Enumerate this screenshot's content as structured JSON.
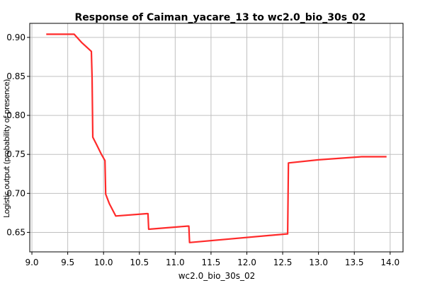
{
  "chart_data": {
    "type": "line",
    "title": "Response of Caiman_yacare_13 to wc2.0_bio_30s_02",
    "xlabel": "wc2.0_bio_30s_02",
    "ylabel": "Logistic output (probability of presence)",
    "xlim": [
      8.97,
      14.18
    ],
    "ylim": [
      0.625,
      0.918
    ],
    "xticks": [
      9.0,
      9.5,
      10.0,
      10.5,
      11.0,
      11.5,
      12.0,
      12.5,
      13.0,
      13.5,
      14.0
    ],
    "xtick_labels": [
      "9.0",
      "9.5",
      "10.0",
      "10.5",
      "11.0",
      "11.5",
      "12.0",
      "12.5",
      "13.0",
      "13.5",
      "14.0"
    ],
    "yticks": [
      0.65,
      0.7,
      0.75,
      0.8,
      0.85,
      0.9
    ],
    "ytick_labels": [
      "0.65",
      "0.70",
      "0.75",
      "0.80",
      "0.85",
      "0.90"
    ],
    "grid": true,
    "color": "#ff2a2a",
    "series": [
      {
        "x": [
          9.2,
          9.59,
          9.61,
          9.7,
          9.83,
          9.84,
          9.85,
          9.9,
          9.97,
          10.02,
          10.03,
          10.08,
          10.17,
          10.6,
          10.62,
          10.63,
          11.17,
          11.19,
          11.2,
          12.56,
          12.57,
          12.58,
          13.0,
          13.6,
          13.95
        ],
        "y": [
          0.904,
          0.904,
          0.902,
          0.893,
          0.882,
          0.848,
          0.772,
          0.763,
          0.75,
          0.742,
          0.699,
          0.687,
          0.671,
          0.674,
          0.674,
          0.654,
          0.658,
          0.658,
          0.637,
          0.648,
          0.648,
          0.739,
          0.743,
          0.747,
          0.747
        ]
      }
    ]
  }
}
